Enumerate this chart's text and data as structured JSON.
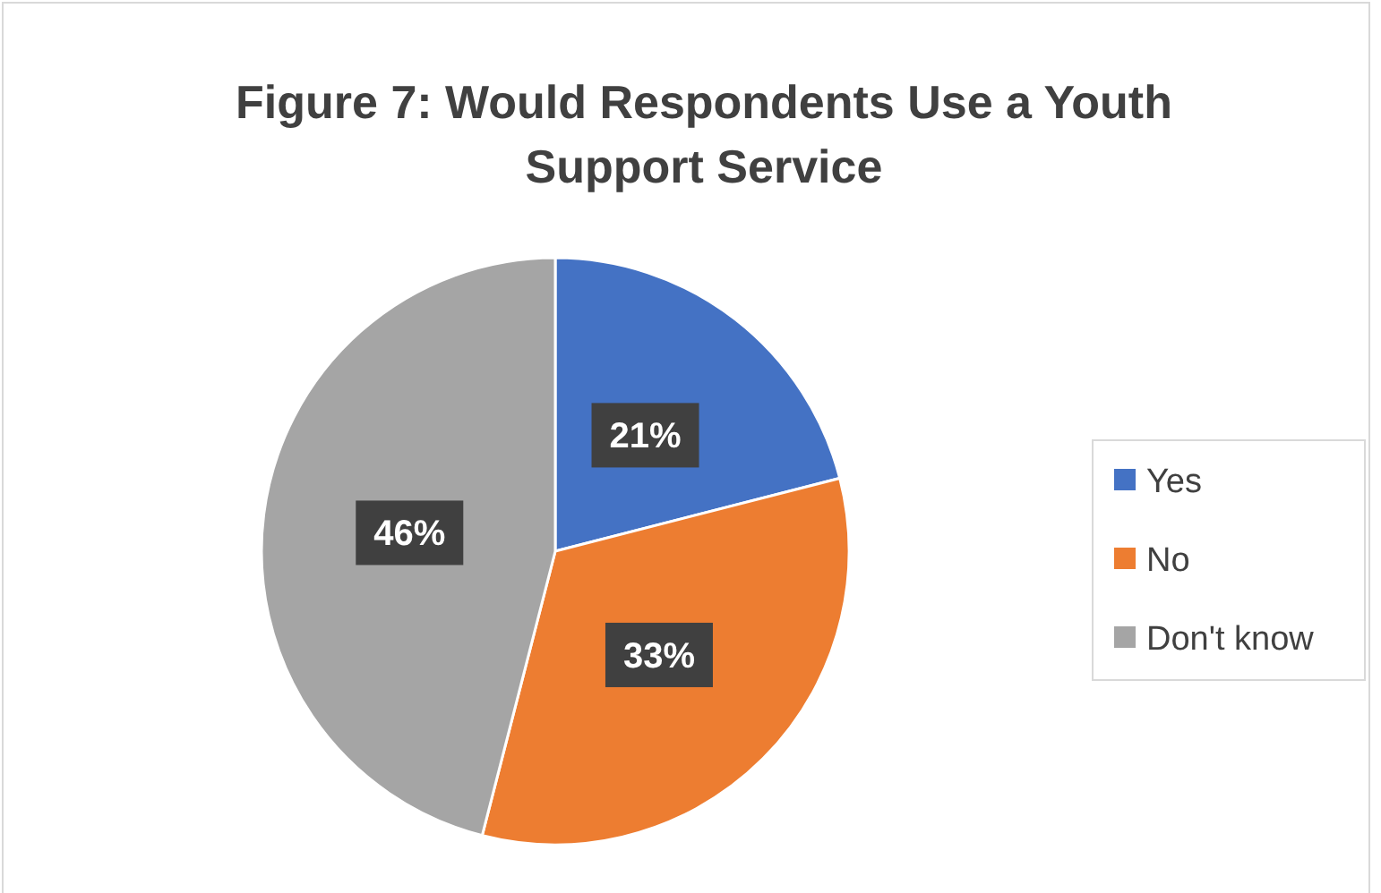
{
  "chart_data": {
    "type": "pie",
    "title": "Figure 7: Would Respondents Use a Youth Support Service",
    "categories": [
      "Yes",
      "No",
      "Don't know"
    ],
    "values": [
      21,
      33,
      46
    ],
    "colors": [
      "#4472c4",
      "#ed7d31",
      "#a5a5a5"
    ],
    "value_labels": [
      "21%",
      "33%",
      "46%"
    ],
    "legend": "right"
  }
}
